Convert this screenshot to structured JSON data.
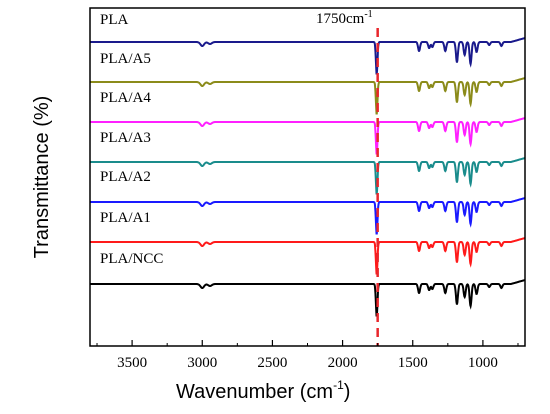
{
  "chart_data": {
    "type": "line",
    "xlabel": "Wavenumber (cm",
    "xlabel_sup": "-1",
    "xlabel_close": ")",
    "ylabel": "Transmittance (%)",
    "xlim": [
      3800,
      700
    ],
    "xticks": [
      3500,
      3000,
      2500,
      2000,
      1500,
      1000
    ],
    "annotation": {
      "text": "1750cm",
      "sup": "-1",
      "x": 1750
    },
    "annotation_line_color": "#e8262b",
    "series": [
      {
        "name": "PLA",
        "color": "#1a1a8c"
      },
      {
        "name": "PLA/A5",
        "color": "#8b8b1a"
      },
      {
        "name": "PLA/A4",
        "color": "#ff20ff"
      },
      {
        "name": "PLA/A3",
        "color": "#1a8c8c"
      },
      {
        "name": "PLA/A2",
        "color": "#1a1aff"
      },
      {
        "name": "PLA/A1",
        "color": "#ff1a1a"
      },
      {
        "name": "PLA/NCC",
        "color": "#000000"
      }
    ],
    "peaks": [
      {
        "x": 3000,
        "depth": 4
      },
      {
        "x": 2945,
        "depth": 2
      },
      {
        "x": 1757,
        "depth": 32
      },
      {
        "x": 1455,
        "depth": 9
      },
      {
        "x": 1383,
        "depth": 6
      },
      {
        "x": 1360,
        "depth": 5
      },
      {
        "x": 1268,
        "depth": 9
      },
      {
        "x": 1185,
        "depth": 20
      },
      {
        "x": 1130,
        "depth": 13
      },
      {
        "x": 1088,
        "depth": 22
      },
      {
        "x": 1045,
        "depth": 10
      },
      {
        "x": 955,
        "depth": 3
      },
      {
        "x": 868,
        "depth": 4
      }
    ]
  }
}
